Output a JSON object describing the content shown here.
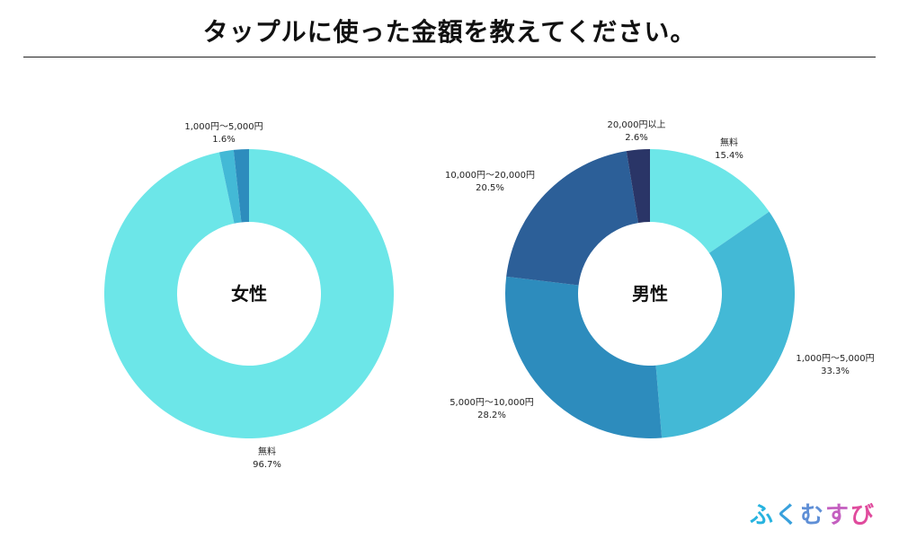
{
  "title": "タップルに使った金額を教えてください。",
  "logo": {
    "text": "ふくむすび",
    "colors": [
      "#27b3df",
      "#38a0dc",
      "#5f8fd6",
      "#c45fc0",
      "#e04b9d"
    ]
  },
  "chart_data": [
    {
      "type": "pie",
      "center_label": "女性",
      "slices": [
        {
          "label": "無料",
          "value": 96.7,
          "value_label": "96.7%",
          "color": "#6ce6e8"
        },
        {
          "label": "1,000円〜5,000円",
          "value": 1.6,
          "value_label": "1.6%",
          "color": "#43b9d6"
        },
        {
          "label": "",
          "value": 1.7,
          "value_label": "",
          "color": "#2d8cbd"
        }
      ]
    },
    {
      "type": "pie",
      "center_label": "男性",
      "slices": [
        {
          "label": "無料",
          "value": 15.4,
          "value_label": "15.4%",
          "color": "#6ce6e8"
        },
        {
          "label": "1,000円〜5,000円",
          "value": 33.3,
          "value_label": "33.3%",
          "color": "#43b9d6"
        },
        {
          "label": "5,000円〜10,000円",
          "value": 28.2,
          "value_label": "28.2%",
          "color": "#2d8cbd"
        },
        {
          "label": "10,000円〜20,000円",
          "value": 20.5,
          "value_label": "20.5%",
          "color": "#2c5f98"
        },
        {
          "label": "20,000円以上",
          "value": 2.6,
          "value_label": "2.6%",
          "color": "#2a3567"
        }
      ]
    }
  ]
}
